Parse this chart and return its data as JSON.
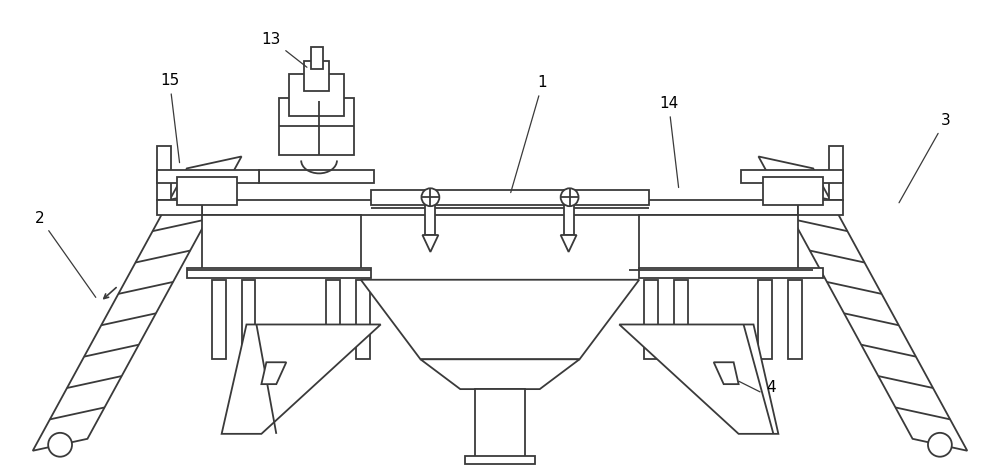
{
  "bg_color": "#ffffff",
  "line_color": "#3a3a3a",
  "lw": 1.3,
  "fig_width": 10.0,
  "fig_height": 4.74
}
